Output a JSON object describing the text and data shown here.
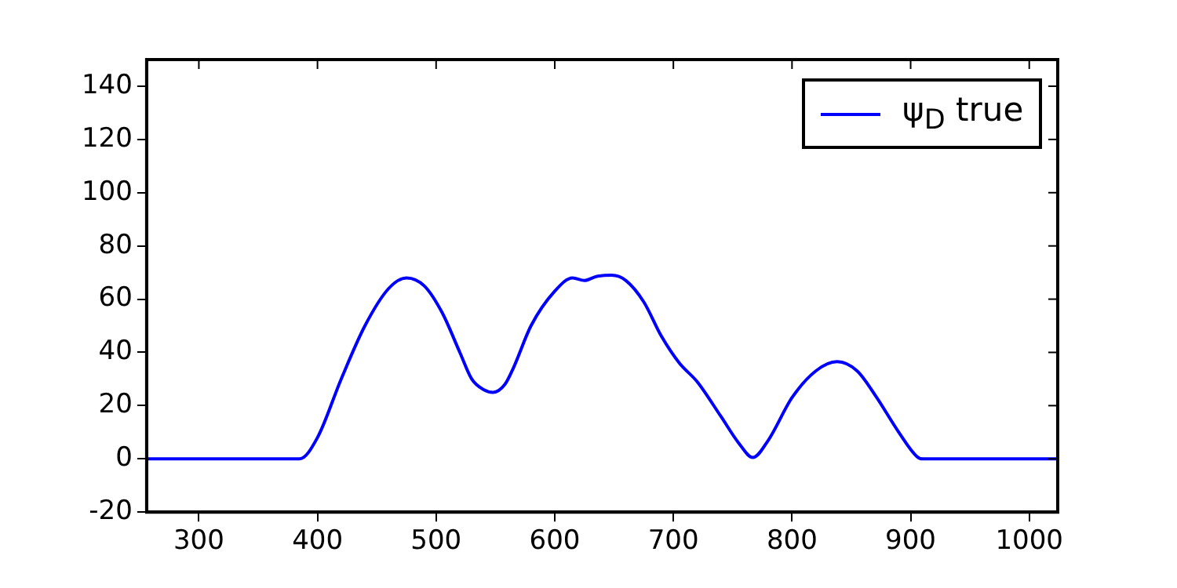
{
  "chart_data": {
    "type": "line",
    "xlim": [
      256,
      1024
    ],
    "xticks": [
      300,
      400,
      500,
      600,
      700,
      800,
      900,
      1000
    ],
    "ylim": [
      -20,
      150
    ],
    "yticks": [
      -20,
      0,
      20,
      40,
      60,
      80,
      100,
      120,
      140
    ],
    "grid": false,
    "legend": "top right",
    "marker": "none",
    "line_style": "solid",
    "x": [
      256,
      385,
      400,
      420,
      440,
      460,
      475,
      490,
      505,
      520,
      530,
      540,
      548,
      558,
      565,
      580,
      600,
      615,
      625,
      635,
      648,
      660,
      675,
      690,
      705,
      720,
      740,
      755,
      767,
      780,
      800,
      820,
      838,
      855,
      870,
      890,
      905,
      910,
      1024
    ],
    "series": [
      {
        "name": "ψ$_{D}$ true",
        "color": "#0000ff",
        "values": [
          0,
          0,
          8,
          30,
          50,
          64,
          68,
          65,
          55,
          40,
          30,
          26,
          25,
          28,
          34,
          50,
          63,
          68,
          67,
          68.5,
          69,
          67,
          59,
          46,
          36,
          29,
          16,
          6,
          0.5,
          7,
          23,
          33,
          36.5,
          33,
          24,
          10,
          1,
          0,
          0
        ]
      }
    ]
  }
}
